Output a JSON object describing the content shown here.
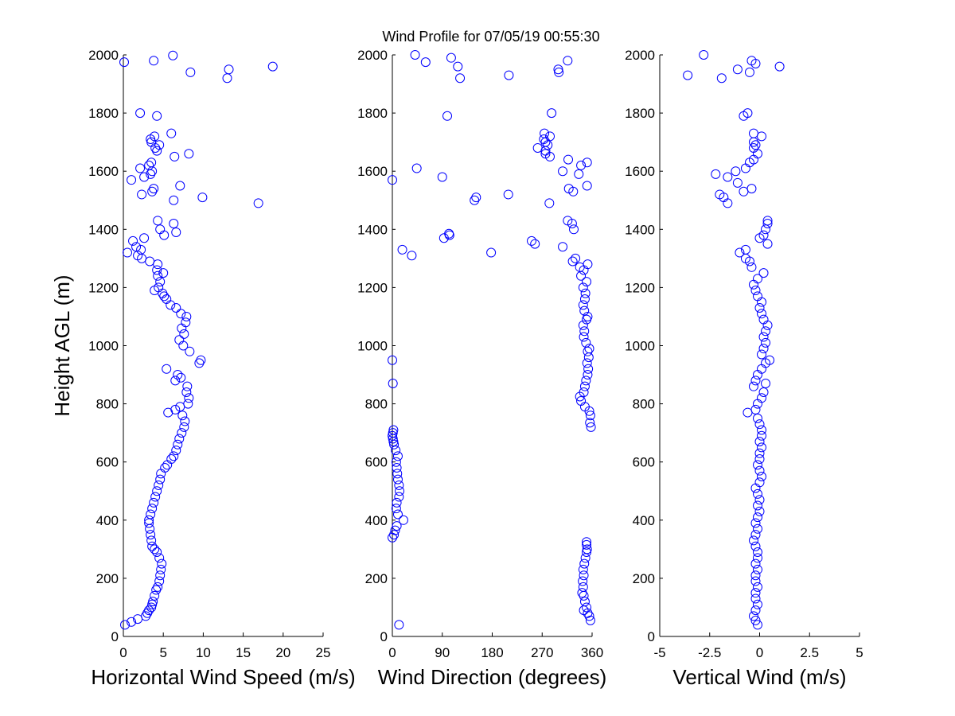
{
  "title": "Wind Profile for  07/05/19 00:55:30",
  "colors": {
    "marker": "#0000ff",
    "axis": "#000000"
  },
  "chart_data": [
    {
      "type": "scatter",
      "xlabel": "Horizontal Wind Speed (m/s)",
      "ylabel": "Height AGL (m)",
      "xlim": [
        0,
        25
      ],
      "ylim": [
        0,
        2000
      ],
      "xticks": [
        0,
        5,
        10,
        15,
        20,
        25
      ],
      "yticks": [
        0,
        200,
        400,
        600,
        800,
        1000,
        1200,
        1400,
        1600,
        1800,
        2000
      ],
      "grid": false,
      "points": [
        [
          0.2,
          40
        ],
        [
          1,
          50
        ],
        [
          1.8,
          60
        ],
        [
          2.8,
          70
        ],
        [
          3,
          80
        ],
        [
          3.2,
          90
        ],
        [
          3.5,
          100
        ],
        [
          3.6,
          110
        ],
        [
          3.7,
          120
        ],
        [
          3.9,
          140
        ],
        [
          4.1,
          160
        ],
        [
          4.3,
          170
        ],
        [
          4.5,
          190
        ],
        [
          4.6,
          210
        ],
        [
          4.7,
          230
        ],
        [
          4.8,
          250
        ],
        [
          4.5,
          270
        ],
        [
          4.2,
          290
        ],
        [
          3.9,
          300
        ],
        [
          3.6,
          310
        ],
        [
          3.5,
          330
        ],
        [
          3.4,
          350
        ],
        [
          3.3,
          370
        ],
        [
          3.2,
          390
        ],
        [
          3.2,
          400
        ],
        [
          3.4,
          420
        ],
        [
          3.6,
          440
        ],
        [
          3.8,
          460
        ],
        [
          4,
          480
        ],
        [
          4.2,
          500
        ],
        [
          4.4,
          520
        ],
        [
          4.6,
          540
        ],
        [
          4.7,
          560
        ],
        [
          5.2,
          580
        ],
        [
          5.5,
          590
        ],
        [
          6,
          610
        ],
        [
          6.3,
          620
        ],
        [
          6.6,
          640
        ],
        [
          6.8,
          660
        ],
        [
          7,
          680
        ],
        [
          7.3,
          700
        ],
        [
          7.6,
          720
        ],
        [
          7.7,
          740
        ],
        [
          7.4,
          760
        ],
        [
          5.6,
          770
        ],
        [
          6.5,
          780
        ],
        [
          7.1,
          790
        ],
        [
          8.1,
          800
        ],
        [
          8.2,
          820
        ],
        [
          7.9,
          840
        ],
        [
          8,
          860
        ],
        [
          6.5,
          880
        ],
        [
          7.2,
          890
        ],
        [
          6.8,
          900
        ],
        [
          5.4,
          920
        ],
        [
          9.5,
          940
        ],
        [
          9.7,
          950
        ],
        [
          8.3,
          980
        ],
        [
          7.5,
          1000
        ],
        [
          7,
          1020
        ],
        [
          7.6,
          1040
        ],
        [
          7.3,
          1060
        ],
        [
          7.8,
          1080
        ],
        [
          7.9,
          1100
        ],
        [
          7.2,
          1110
        ],
        [
          6.6,
          1130
        ],
        [
          5.9,
          1140
        ],
        [
          5.4,
          1160
        ],
        [
          5.1,
          1170
        ],
        [
          4.9,
          1180
        ],
        [
          3.9,
          1190
        ],
        [
          4.4,
          1200
        ],
        [
          4.6,
          1220
        ],
        [
          4.3,
          1240
        ],
        [
          5,
          1250
        ],
        [
          4.2,
          1260
        ],
        [
          4.3,
          1280
        ],
        [
          3.3,
          1290
        ],
        [
          2.3,
          1300
        ],
        [
          1.8,
          1310
        ],
        [
          0.5,
          1320
        ],
        [
          2.2,
          1330
        ],
        [
          1.6,
          1340
        ],
        [
          1.2,
          1360
        ],
        [
          2.6,
          1370
        ],
        [
          5.1,
          1380
        ],
        [
          6.6,
          1390
        ],
        [
          4.6,
          1400
        ],
        [
          6.3,
          1420
        ],
        [
          4.3,
          1430
        ],
        [
          16.9,
          1490
        ],
        [
          6.3,
          1500
        ],
        [
          9.9,
          1510
        ],
        [
          2.3,
          1520
        ],
        [
          3.6,
          1530
        ],
        [
          3.8,
          1540
        ],
        [
          7.1,
          1550
        ],
        [
          1,
          1570
        ],
        [
          2.6,
          1580
        ],
        [
          3.4,
          1590
        ],
        [
          3.6,
          1600
        ],
        [
          2.1,
          1610
        ],
        [
          3.2,
          1620
        ],
        [
          3.5,
          1630
        ],
        [
          6.4,
          1650
        ],
        [
          8.2,
          1660
        ],
        [
          4.2,
          1670
        ],
        [
          4,
          1680
        ],
        [
          4.5,
          1690
        ],
        [
          3.5,
          1700
        ],
        [
          3.4,
          1710
        ],
        [
          3.9,
          1720
        ],
        [
          6,
          1730
        ],
        [
          4.2,
          1790
        ],
        [
          2.1,
          1800
        ],
        [
          13,
          1920
        ],
        [
          8.4,
          1940
        ],
        [
          13.2,
          1950
        ],
        [
          18.7,
          1960
        ],
        [
          0.1,
          1975
        ],
        [
          3.8,
          1980
        ],
        [
          6.2,
          1998
        ]
      ]
    },
    {
      "type": "scatter",
      "xlabel": "Wind Direction (degrees)",
      "ylabel": "",
      "xlim": [
        0,
        360
      ],
      "ylim": [
        0,
        2000
      ],
      "xticks": [
        0,
        90,
        180,
        270,
        360
      ],
      "yticks": [
        0,
        200,
        400,
        600,
        800,
        1000,
        1200,
        1400,
        1600,
        1800,
        2000
      ],
      "grid": false,
      "points": [
        [
          12,
          40
        ],
        [
          357,
          55
        ],
        [
          355,
          70
        ],
        [
          352,
          80
        ],
        [
          345,
          90
        ],
        [
          350,
          100
        ],
        [
          347,
          120
        ],
        [
          345,
          140
        ],
        [
          342,
          150
        ],
        [
          344,
          170
        ],
        [
          343,
          190
        ],
        [
          345,
          210
        ],
        [
          344,
          230
        ],
        [
          346,
          250
        ],
        [
          348,
          270
        ],
        [
          350,
          290
        ],
        [
          351,
          300
        ],
        [
          350,
          315
        ],
        [
          350,
          325
        ],
        [
          0,
          340
        ],
        [
          3,
          350
        ],
        [
          5,
          365
        ],
        [
          8,
          380
        ],
        [
          20,
          400
        ],
        [
          10,
          420
        ],
        [
          7,
          440
        ],
        [
          8,
          460
        ],
        [
          12,
          480
        ],
        [
          13,
          500
        ],
        [
          12,
          520
        ],
        [
          10,
          540
        ],
        [
          9,
          560
        ],
        [
          8,
          580
        ],
        [
          7,
          600
        ],
        [
          10,
          620
        ],
        [
          6,
          640
        ],
        [
          3,
          660
        ],
        [
          2,
          670
        ],
        [
          1,
          680
        ],
        [
          0,
          690
        ],
        [
          1,
          700
        ],
        [
          2,
          710
        ],
        [
          358,
          720
        ],
        [
          356,
          735
        ],
        [
          357,
          760
        ],
        [
          355,
          775
        ],
        [
          347,
          790
        ],
        [
          340,
          810
        ],
        [
          338,
          825
        ],
        [
          345,
          840
        ],
        [
          347,
          860
        ],
        [
          349,
          880
        ],
        [
          352,
          900
        ],
        [
          353,
          920
        ],
        [
          351,
          940
        ],
        [
          354,
          960
        ],
        [
          352,
          980
        ],
        [
          355,
          990
        ],
        [
          349,
          1010
        ],
        [
          345,
          1030
        ],
        [
          346,
          1050
        ],
        [
          344,
          1070
        ],
        [
          350,
          1090
        ],
        [
          352,
          1100
        ],
        [
          346,
          1120
        ],
        [
          344,
          1140
        ],
        [
          347,
          1160
        ],
        [
          348,
          1180
        ],
        [
          344,
          1200
        ],
        [
          350,
          1220
        ],
        [
          340,
          1240
        ],
        [
          345,
          1260
        ],
        [
          352,
          1280
        ],
        [
          325,
          1290
        ],
        [
          330,
          1300
        ],
        [
          1,
          870
        ],
        [
          0,
          950
        ],
        [
          338,
          1270
        ],
        [
          35,
          1310
        ],
        [
          178,
          1320
        ],
        [
          18,
          1330
        ],
        [
          307,
          1340
        ],
        [
          257,
          1350
        ],
        [
          251,
          1360
        ],
        [
          93,
          1370
        ],
        [
          103,
          1380
        ],
        [
          102,
          1385
        ],
        [
          327,
          1400
        ],
        [
          324,
          1420
        ],
        [
          316,
          1430
        ],
        [
          283,
          1490
        ],
        [
          148,
          1500
        ],
        [
          151,
          1510
        ],
        [
          209,
          1520
        ],
        [
          326,
          1530
        ],
        [
          318,
          1540
        ],
        [
          351,
          1550
        ],
        [
          0,
          1570
        ],
        [
          90,
          1580
        ],
        [
          336,
          1590
        ],
        [
          307,
          1600
        ],
        [
          44,
          1610
        ],
        [
          340,
          1620
        ],
        [
          351,
          1630
        ],
        [
          317,
          1640
        ],
        [
          284,
          1650
        ],
        [
          276,
          1660
        ],
        [
          276,
          1670
        ],
        [
          262,
          1680
        ],
        [
          280,
          1690
        ],
        [
          276,
          1700
        ],
        [
          273,
          1710
        ],
        [
          284,
          1720
        ],
        [
          274,
          1730
        ],
        [
          99,
          1790
        ],
        [
          287,
          1800
        ],
        [
          122,
          1920
        ],
        [
          210,
          1930
        ],
        [
          300,
          1940
        ],
        [
          299,
          1950
        ],
        [
          118,
          1960
        ],
        [
          60,
          1975
        ],
        [
          316,
          1980
        ],
        [
          106,
          1990
        ],
        [
          41,
          2000
        ]
      ]
    },
    {
      "type": "scatter",
      "xlabel": "Vertical Wind (m/s)",
      "ylabel": "",
      "xlim": [
        -5,
        5
      ],
      "ylim": [
        0,
        2000
      ],
      "xticks": [
        -5,
        -2.5,
        0,
        2.5,
        5
      ],
      "yticks": [
        0,
        200,
        400,
        600,
        800,
        1000,
        1200,
        1400,
        1600,
        1800,
        2000
      ],
      "grid": false,
      "points": [
        [
          -0.1,
          40
        ],
        [
          -0.2,
          55
        ],
        [
          -0.3,
          70
        ],
        [
          -0.2,
          90
        ],
        [
          -0.1,
          110
        ],
        [
          -0.2,
          130
        ],
        [
          -0.2,
          150
        ],
        [
          -0.1,
          170
        ],
        [
          -0.2,
          190
        ],
        [
          -0.2,
          210
        ],
        [
          -0.1,
          230
        ],
        [
          -0.2,
          250
        ],
        [
          -0.1,
          270
        ],
        [
          -0.1,
          290
        ],
        [
          -0.2,
          310
        ],
        [
          -0.3,
          330
        ],
        [
          -0.2,
          350
        ],
        [
          -0.1,
          370
        ],
        [
          -0.2,
          390
        ],
        [
          -0.1,
          410
        ],
        [
          0,
          430
        ],
        [
          -0.1,
          450
        ],
        [
          0,
          470
        ],
        [
          -0.1,
          490
        ],
        [
          -0.2,
          510
        ],
        [
          0,
          530
        ],
        [
          0.1,
          550
        ],
        [
          0,
          570
        ],
        [
          -0.1,
          590
        ],
        [
          0,
          610
        ],
        [
          0,
          630
        ],
        [
          0.1,
          650
        ],
        [
          0,
          670
        ],
        [
          0.1,
          690
        ],
        [
          0.1,
          710
        ],
        [
          0,
          730
        ],
        [
          -0.1,
          750
        ],
        [
          -0.6,
          770
        ],
        [
          -0.2,
          780
        ],
        [
          -0.1,
          800
        ],
        [
          0.1,
          820
        ],
        [
          0.2,
          840
        ],
        [
          -0.3,
          860
        ],
        [
          0.3,
          870
        ],
        [
          -0.2,
          880
        ],
        [
          -0.1,
          900
        ],
        [
          0.1,
          920
        ],
        [
          0.3,
          940
        ],
        [
          0.5,
          950
        ],
        [
          0.1,
          970
        ],
        [
          0.2,
          990
        ],
        [
          0.3,
          1010
        ],
        [
          0.2,
          1030
        ],
        [
          0.3,
          1050
        ],
        [
          0.4,
          1070
        ],
        [
          0.2,
          1090
        ],
        [
          0.1,
          1110
        ],
        [
          0,
          1130
        ],
        [
          0.1,
          1150
        ],
        [
          -0.1,
          1170
        ],
        [
          -0.2,
          1190
        ],
        [
          -0.3,
          1210
        ],
        [
          -0.1,
          1230
        ],
        [
          0.2,
          1250
        ],
        [
          -0.4,
          1270
        ],
        [
          -0.5,
          1290
        ],
        [
          -0.7,
          1300
        ],
        [
          -1,
          1320
        ],
        [
          -0.7,
          1330
        ],
        [
          0.4,
          1350
        ],
        [
          0,
          1370
        ],
        [
          0.2,
          1380
        ],
        [
          0.3,
          1400
        ],
        [
          0.4,
          1420
        ],
        [
          0.4,
          1430
        ],
        [
          -1.6,
          1490
        ],
        [
          -1.8,
          1510
        ],
        [
          -2,
          1520
        ],
        [
          -0.8,
          1530
        ],
        [
          -0.4,
          1540
        ],
        [
          -1.1,
          1560
        ],
        [
          -1.6,
          1580
        ],
        [
          -2.2,
          1590
        ],
        [
          -1.2,
          1600
        ],
        [
          -0.7,
          1610
        ],
        [
          -0.5,
          1630
        ],
        [
          -0.3,
          1640
        ],
        [
          -0.1,
          1660
        ],
        [
          -0.3,
          1680
        ],
        [
          -0.2,
          1690
        ],
        [
          -0.3,
          1700
        ],
        [
          0.1,
          1720
        ],
        [
          -0.3,
          1730
        ],
        [
          -0.8,
          1790
        ],
        [
          -0.6,
          1800
        ],
        [
          -1.9,
          1920
        ],
        [
          -3.6,
          1930
        ],
        [
          -0.5,
          1940
        ],
        [
          -1.1,
          1950
        ],
        [
          1,
          1960
        ],
        [
          -0.2,
          1970
        ],
        [
          -0.4,
          1980
        ],
        [
          -2.8,
          2000
        ]
      ]
    }
  ]
}
